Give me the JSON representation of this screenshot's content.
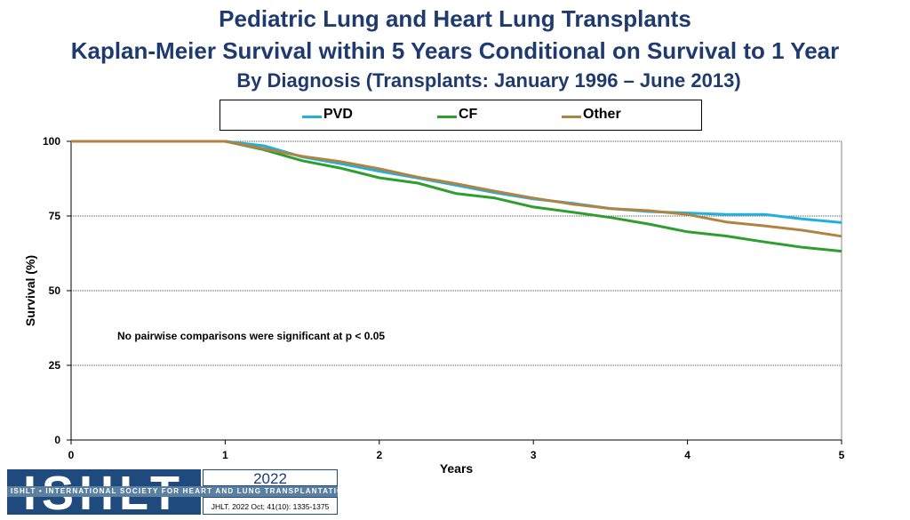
{
  "header": {
    "title_line1": "Pediatric Lung and Heart Lung Transplants",
    "title_line2": "Kaplan-Meier Survival within 5 Years Conditional on Survival to 1 Year",
    "subtitle": "By Diagnosis (Transplants: January 1996 – June 2013)"
  },
  "chart_data": {
    "type": "line",
    "title": "Kaplan-Meier Survival within 5 Years Conditional on Survival to 1 Year",
    "xlabel": "Years",
    "ylabel": "Survival (%)",
    "xlim": [
      0,
      5
    ],
    "ylim": [
      0,
      100
    ],
    "xticks": [
      0,
      1,
      2,
      3,
      4,
      5
    ],
    "yticks": [
      0,
      25,
      50,
      75,
      100
    ],
    "grid": "horizontal dotted",
    "legend_position": "top",
    "annotation": "No pairwise comparisons were significant at p < 0.05",
    "series": [
      {
        "name": "PVD",
        "color": "#1fb0e0",
        "x": [
          0,
          1,
          1.25,
          1.5,
          1.75,
          2,
          2.25,
          2.5,
          2.75,
          3,
          3.25,
          3.5,
          3.75,
          4,
          4.25,
          4.5,
          4.75,
          5
        ],
        "y": [
          100,
          100,
          98.5,
          94.8,
          92.5,
          90,
          87.7,
          85.3,
          82.8,
          80.7,
          79.3,
          77.5,
          76.5,
          76,
          75.5,
          75.5,
          74,
          72.8
        ]
      },
      {
        "name": "CF",
        "color": "#2e9e2e",
        "x": [
          0,
          1,
          1.25,
          1.5,
          1.75,
          2,
          2.25,
          2.5,
          2.75,
          3,
          3.25,
          3.5,
          3.75,
          4,
          4.25,
          4.5,
          4.75,
          5
        ],
        "y": [
          100,
          100,
          97.2,
          93.5,
          91,
          87.8,
          86,
          82.5,
          81,
          78,
          76.3,
          74.5,
          72.3,
          69.7,
          68.3,
          66.3,
          64.5,
          63.2
        ]
      },
      {
        "name": "Other",
        "color": "#b08440",
        "x": [
          0,
          1,
          1.25,
          1.5,
          1.75,
          2,
          2.25,
          2.5,
          2.75,
          3,
          3.25,
          3.5,
          3.75,
          4,
          4.25,
          4.5,
          4.75,
          5
        ],
        "y": [
          100,
          100,
          97.5,
          95,
          93.2,
          90.8,
          88,
          85.8,
          83.3,
          81,
          79,
          77.5,
          76.8,
          75.5,
          73,
          71.7,
          70.2,
          68.2
        ]
      }
    ]
  },
  "footer": {
    "logo_text": "ISHLT",
    "org_band": "ISHLT • INTERNATIONAL SOCIETY FOR HEART AND LUNG TRANSPLANTATION",
    "year": "2022",
    "citation": "JHLT. 2022 Oct; 41(10): 1335-1375"
  }
}
